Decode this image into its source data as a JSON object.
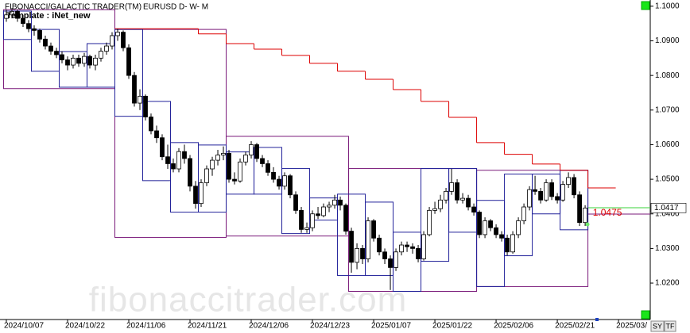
{
  "chart_data": {
    "type": "candlestick",
    "title": "FIBONACCI/GALACTIC TRADER(TM)",
    "symbol": "EURUSD D- W- M",
    "subtitle": "Template : iNet_new",
    "watermark": "fibonaccitrader.com",
    "buttons": [
      "SY",
      "TF"
    ],
    "xlim": [
      -1.14,
      115.7
    ],
    "xticks": [
      {
        "value": 0,
        "label": "2024/10/07"
      },
      {
        "value": 11,
        "label": "2024/10/22"
      },
      {
        "value": 22,
        "label": "2024/11/06"
      },
      {
        "value": 33,
        "label": "2024/11/21"
      },
      {
        "value": 44,
        "label": "2024/12/06"
      },
      {
        "value": 55,
        "label": "2024/12/23"
      },
      {
        "value": 66,
        "label": "2025/01/07"
      },
      {
        "value": 77,
        "label": "2025/01/22"
      },
      {
        "value": 88,
        "label": "2025/02/06"
      },
      {
        "value": 99,
        "label": "2025/02/21"
      },
      {
        "value": 110,
        "label": "2025/03/"
      }
    ],
    "ylim": [
      1.0097,
      1.1018
    ],
    "yticks": [
      {
        "value": 1.02,
        "label": "1.0200"
      },
      {
        "value": 1.03,
        "label": "1.0300"
      },
      {
        "value": 1.04,
        "label": "1.0400"
      },
      {
        "value": 1.05,
        "label": "1.0500"
      },
      {
        "value": 1.06,
        "label": "1.0600"
      },
      {
        "value": 1.07,
        "label": "1.0700"
      },
      {
        "value": 1.08,
        "label": "1.0800"
      },
      {
        "value": 1.09,
        "label": "1.0900"
      },
      {
        "value": 1.1,
        "label": "1.1000"
      }
    ],
    "up_color": "#ffffff",
    "down_color": "#000000",
    "open": [
      1.0965,
      1.0975,
      1.0985,
      1.0965,
      1.095,
      1.0935,
      1.093,
      1.0905,
      1.0885,
      1.087,
      1.086,
      1.0845,
      1.083,
      1.085,
      1.0835,
      1.0855,
      1.083,
      1.085,
      1.087,
      1.0885,
      1.0915,
      1.0925,
      1.088,
      1.08,
      1.072,
      1.074,
      1.068,
      1.064,
      1.062,
      1.0565,
      1.0545,
      1.053,
      1.058,
      1.056,
      1.048,
      1.043,
      1.049,
      1.053,
      1.0555,
      1.057,
      1.0575,
      1.05,
      1.0495,
      1.055,
      1.057,
      1.06,
      1.056,
      1.0545,
      1.052,
      1.05,
      1.048,
      1.051,
      1.0455,
      1.041,
      1.0355,
      1.036,
      1.04,
      1.0395,
      1.042,
      1.0425,
      1.044,
      1.0425,
      1.035,
      1.026,
      1.03,
      1.027,
      1.038,
      1.033,
      1.029,
      1.027,
      1.0245,
      1.029,
      1.031,
      1.0305,
      1.03,
      1.027,
      1.034,
      1.041,
      1.0415,
      1.044,
      1.0465,
      1.049,
      1.044,
      1.0445,
      1.042,
      1.0405,
      1.034,
      1.038,
      1.036,
      1.034,
      1.033,
      1.029,
      1.034,
      1.038,
      1.042,
      1.047,
      1.0465,
      1.044,
      1.049,
      1.045,
      1.044,
      1.0485,
      1.0505,
      1.0455,
      1.0375
    ],
    "high": [
      1.099,
      1.0995,
      1.099,
      1.0975,
      1.096,
      1.0945,
      1.0935,
      1.0915,
      1.0895,
      1.088,
      1.087,
      1.0855,
      1.086,
      1.086,
      1.0865,
      1.086,
      1.086,
      1.088,
      1.0895,
      1.0925,
      1.0935,
      1.093,
      1.089,
      1.081,
      1.076,
      1.0745,
      1.069,
      1.0655,
      1.063,
      1.06,
      1.056,
      1.059,
      1.06,
      1.057,
      1.0495,
      1.05,
      1.054,
      1.0565,
      1.0585,
      1.0595,
      1.0585,
      1.052,
      1.056,
      1.058,
      1.061,
      1.0605,
      1.057,
      1.0555,
      1.0535,
      1.051,
      1.052,
      1.0515,
      1.0465,
      1.042,
      1.0375,
      1.041,
      1.042,
      1.043,
      1.0435,
      1.0455,
      1.045,
      1.043,
      1.036,
      1.0315,
      1.031,
      1.039,
      1.0385,
      1.034,
      1.03,
      1.028,
      1.03,
      1.032,
      1.032,
      1.0315,
      1.031,
      1.035,
      1.042,
      1.0435,
      1.0455,
      1.0475,
      1.053,
      1.05,
      1.046,
      1.0455,
      1.043,
      1.041,
      1.039,
      1.0385,
      1.037,
      1.035,
      1.034,
      1.035,
      1.039,
      1.043,
      1.048,
      1.051,
      1.0475,
      1.05,
      1.05,
      1.046,
      1.0495,
      1.052,
      1.0515,
      1.0465,
      1.0425
    ],
    "low": [
      1.0955,
      1.0965,
      1.0955,
      1.094,
      1.0925,
      1.0915,
      1.0895,
      1.0875,
      1.086,
      1.085,
      1.0835,
      1.0815,
      1.082,
      1.0825,
      1.0825,
      1.082,
      1.0815,
      1.084,
      1.086,
      1.0875,
      1.09,
      1.087,
      1.079,
      1.071,
      1.07,
      1.067,
      1.063,
      1.0605,
      1.0555,
      1.053,
      1.052,
      1.052,
      1.0545,
      1.0465,
      1.0415,
      1.042,
      1.048,
      1.051,
      1.054,
      1.0555,
      1.049,
      1.0485,
      1.049,
      1.054,
      1.056,
      1.055,
      1.0535,
      1.051,
      1.049,
      1.047,
      1.047,
      1.0445,
      1.04,
      1.0345,
      1.0345,
      1.035,
      1.0385,
      1.039,
      1.0405,
      1.0415,
      1.041,
      1.034,
      1.023,
      1.024,
      1.0255,
      1.026,
      1.032,
      1.028,
      1.0255,
      1.018,
      1.0235,
      1.028,
      1.029,
      1.0285,
      1.026,
      1.0265,
      1.0335,
      1.04,
      1.0405,
      1.043,
      1.0455,
      1.043,
      1.043,
      1.041,
      1.0395,
      1.033,
      1.033,
      1.035,
      1.033,
      1.032,
      1.028,
      1.0285,
      1.033,
      1.037,
      1.041,
      1.0455,
      1.043,
      1.0435,
      1.044,
      1.043,
      1.0435,
      1.0475,
      1.0445,
      1.0365,
      1.0365
    ],
    "close": [
      1.0975,
      1.0985,
      1.0965,
      1.095,
      1.0935,
      1.093,
      1.0905,
      1.0885,
      1.087,
      1.086,
      1.0845,
      1.083,
      1.085,
      1.0835,
      1.0855,
      1.083,
      1.085,
      1.087,
      1.0885,
      1.0915,
      1.0925,
      1.088,
      1.08,
      1.072,
      1.074,
      1.068,
      1.064,
      1.062,
      1.0565,
      1.0545,
      1.053,
      1.058,
      1.056,
      1.048,
      1.043,
      1.049,
      1.053,
      1.0555,
      1.057,
      1.0575,
      1.05,
      1.0495,
      1.055,
      1.057,
      1.06,
      1.056,
      1.0545,
      1.052,
      1.05,
      1.048,
      1.051,
      1.0455,
      1.041,
      1.0355,
      1.036,
      1.04,
      1.0395,
      1.042,
      1.0425,
      1.044,
      1.0425,
      1.035,
      1.026,
      1.03,
      1.027,
      1.038,
      1.033,
      1.029,
      1.027,
      1.0245,
      1.029,
      1.031,
      1.0305,
      1.03,
      1.027,
      1.034,
      1.041,
      1.0415,
      1.044,
      1.0465,
      1.049,
      1.044,
      1.0445,
      1.042,
      1.0405,
      1.034,
      1.038,
      1.036,
      1.034,
      1.033,
      1.029,
      1.034,
      1.038,
      1.042,
      1.047,
      1.0465,
      1.044,
      1.049,
      1.045,
      1.044,
      1.0485,
      1.0505,
      1.0455,
      1.0375,
      1.0417
    ],
    "weekly_color": "#22229a",
    "weekly_high": [
      1.0986,
      1.0933,
      1.0869,
      1.0892,
      1.0933,
      1.0725,
      1.0606,
      1.0599,
      1.0579,
      1.0592,
      1.0531,
      1.0446,
      1.0457,
      1.0434,
      1.0347,
      1.0531,
      1.0531,
      1.0439,
      1.0515,
      1.0515,
      1.0526
    ],
    "weekly_low": [
      1.0904,
      1.0812,
      1.0766,
      1.0766,
      1.0682,
      1.0496,
      1.0405,
      1.0405,
      1.0457,
      1.0457,
      1.0343,
      1.0382,
      1.0222,
      1.0222,
      1.0176,
      1.0263,
      1.0347,
      1.019,
      1.0279,
      1.04,
      1.0354
    ],
    "monthly_color": "#7a1a7a",
    "monthly_boxes": [
      {
        "start": 0,
        "end": 19,
        "high": 1.099,
        "low": 1.0762
      },
      {
        "start": 20,
        "end": 39,
        "high": 1.0933,
        "low": 1.0332
      },
      {
        "start": 40,
        "end": 61,
        "high": 1.0624,
        "low": 1.0336
      },
      {
        "start": 62,
        "end": 84,
        "high": 1.0531,
        "low": 1.0176
      },
      {
        "start": 85,
        "end": 104,
        "high": 1.0526,
        "low": 1.019
      }
    ],
    "resistance_color": "#dd0000",
    "resistance": [
      null,
      null,
      null,
      null,
      1.0935,
      1.0935,
      1.0935,
      1.092,
      1.0892,
      1.0876,
      1.0858,
      1.0835,
      1.0812,
      1.0789,
      1.0759,
      1.0725,
      1.0679,
      1.0606,
      1.0572,
      1.0544,
      1.0526,
      1.0475
    ]
  }
}
